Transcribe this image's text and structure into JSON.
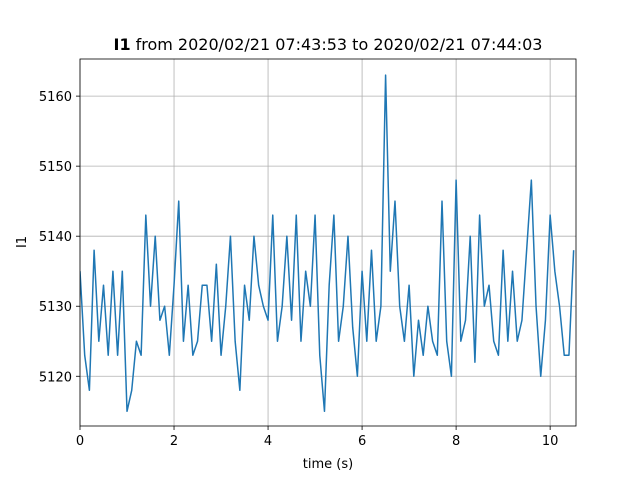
{
  "chart_data": {
    "type": "line",
    "title_name": "I1",
    "title": "from 2020/02/21 07:43:53 to 2020/02/21 07:44:03",
    "x_label": "time (s)",
    "y_label": "I1",
    "xlim": [
      0,
      10.55
    ],
    "ylim": [
      5112.9,
      5165.3
    ],
    "xticks": [
      0,
      2,
      4,
      6,
      8,
      10
    ],
    "yticks": [
      5120,
      5130,
      5140,
      5150,
      5160
    ],
    "grid": true,
    "x": [
      0,
      0.1,
      0.2,
      0.3,
      0.4,
      0.5,
      0.6,
      0.7,
      0.8,
      0.9,
      1.0,
      1.1,
      1.2,
      1.3,
      1.4,
      1.5,
      1.6,
      1.7,
      1.8,
      1.9,
      2.0,
      2.1,
      2.2,
      2.3,
      2.4,
      2.5,
      2.6,
      2.7,
      2.8,
      2.9,
      3.0,
      3.1,
      3.2,
      3.3,
      3.4,
      3.5,
      3.6,
      3.7,
      3.8,
      3.9,
      4.0,
      4.1,
      4.2,
      4.3,
      4.4,
      4.5,
      4.6,
      4.7,
      4.8,
      4.9,
      5.0,
      5.1,
      5.2,
      5.3,
      5.4,
      5.5,
      5.6,
      5.7,
      5.8,
      5.9,
      6.0,
      6.1,
      6.2,
      6.3,
      6.4,
      6.5,
      6.6,
      6.7,
      6.8,
      6.9,
      7.0,
      7.1,
      7.2,
      7.3,
      7.4,
      7.5,
      7.6,
      7.7,
      7.8,
      7.9,
      8.0,
      8.1,
      8.2,
      8.3,
      8.4,
      8.5,
      8.6,
      8.7,
      8.8,
      8.9,
      9.0,
      9.1,
      9.2,
      9.3,
      9.4,
      9.5,
      9.6,
      9.7,
      9.8,
      9.9,
      10.0,
      10.1,
      10.2,
      10.3,
      10.4,
      10.5
    ],
    "series": [
      {
        "name": "I1",
        "color": "#1f77b4",
        "values": [
          5135,
          5123,
          5118,
          5138,
          5125,
          5133,
          5123,
          5135,
          5123,
          5135,
          5115,
          5118,
          5125,
          5123,
          5143,
          5130,
          5140,
          5128,
          5130,
          5123,
          5133,
          5145,
          5125,
          5133,
          5123,
          5125,
          5133,
          5133,
          5125,
          5136,
          5123,
          5130,
          5140,
          5125,
          5118,
          5133,
          5128,
          5140,
          5133,
          5130,
          5128,
          5143,
          5125,
          5130,
          5140,
          5128,
          5143,
          5125,
          5135,
          5130,
          5143,
          5123,
          5115,
          5133,
          5143,
          5125,
          5130,
          5140,
          5127,
          5120,
          5135,
          5125,
          5138,
          5125,
          5130,
          5163,
          5135,
          5145,
          5130,
          5125,
          5133,
          5120,
          5128,
          5123,
          5130,
          5125,
          5123,
          5145,
          5125,
          5120,
          5148,
          5125,
          5128,
          5140,
          5122,
          5143,
          5130,
          5133,
          5125,
          5123,
          5138,
          5125,
          5135,
          5125,
          5128,
          5138,
          5148,
          5130,
          5120,
          5128,
          5143,
          5135,
          5130,
          5123,
          5123,
          5138
        ]
      }
    ]
  }
}
